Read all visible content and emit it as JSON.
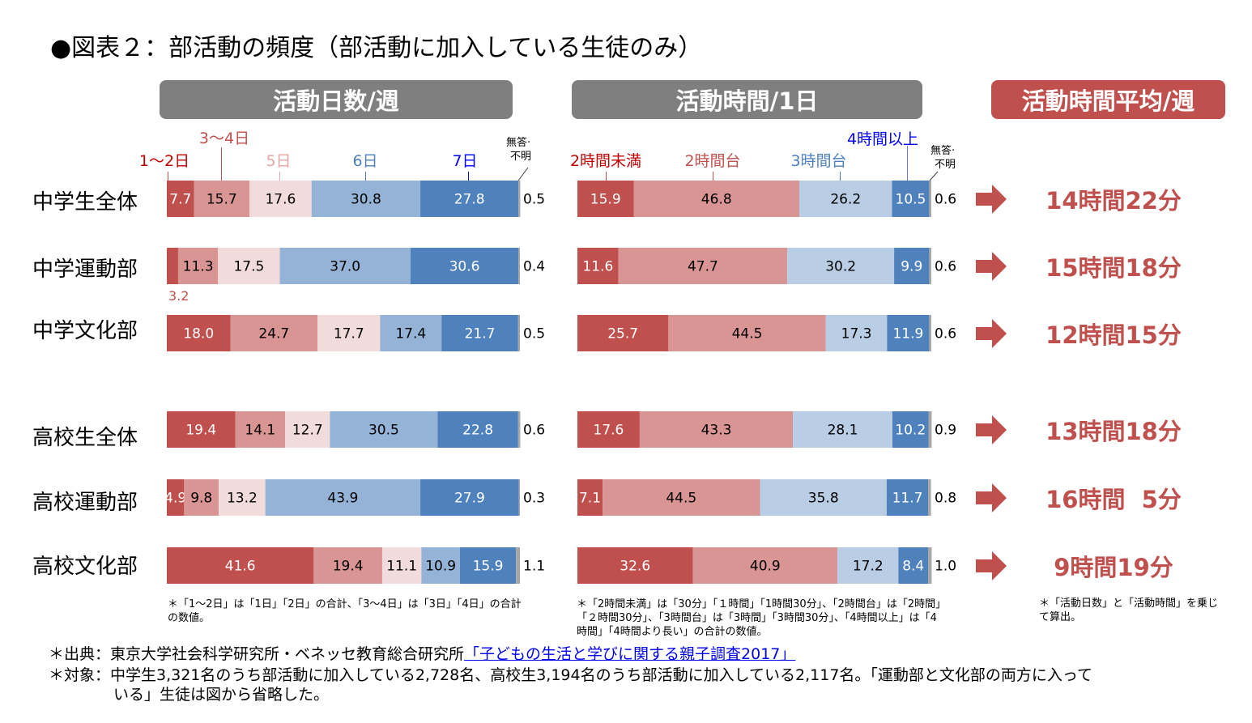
{
  "title": "●図表２：部活動の頻度（部活動に加入している生徒のみ）",
  "headers": {
    "days": "活動日数/週",
    "time": "活動時間/1日",
    "avg": "活動時間平均/週"
  },
  "rows": [
    {
      "label": "中学生全体",
      "avg": "14時間22分"
    },
    {
      "label": "中学運動部",
      "avg": "15時間18分"
    },
    {
      "label": "中学文化部",
      "avg": "12時間15分"
    },
    {
      "label": "高校生全体",
      "avg": "13時間18分"
    },
    {
      "label": "高校運動部",
      "avg": "16時間  5分"
    },
    {
      "label": "高校文化部",
      "avg": "9時間19分"
    }
  ],
  "legend": {
    "days": [
      "1～2日",
      "3～4日",
      "5日",
      "6日",
      "7日"
    ],
    "time": [
      "2時間未満",
      "2時間台",
      "3時間台",
      "4時間以上"
    ],
    "no_answer_line1": "無答·",
    "no_answer_line2": "不明"
  },
  "colors": {
    "days": [
      "#c0504d",
      "#d99594",
      "#f2dcdb",
      "#95b3d7",
      "#4f81bd",
      "#a6a6a6"
    ],
    "time": [
      "#c0504d",
      "#d99594",
      "#b9cde5",
      "#4f81bd",
      "#a6a6a6"
    ],
    "legend_days": [
      "#c00000",
      "#c0504d",
      "#e6a5a3",
      "#4f81bd",
      "#0000ff"
    ],
    "legend_time": [
      "#c00000",
      "#c0504d",
      "#4f81bd",
      "#0000ff"
    ],
    "accent": "#c0504d",
    "header_gray": "#7f7f7f"
  },
  "chart_data": [
    {
      "type": "bar",
      "orientation": "horizontal-stacked-100",
      "title": "活動日数/週",
      "unit": "%",
      "categories": [
        "中学生全体",
        "中学運動部",
        "中学文化部",
        "高校生全体",
        "高校運動部",
        "高校文化部"
      ],
      "series": [
        {
          "name": "1～2日",
          "values": [
            7.7,
            3.2,
            18.0,
            19.4,
            4.9,
            41.6
          ]
        },
        {
          "name": "3～4日",
          "values": [
            15.7,
            11.3,
            24.7,
            14.1,
            9.8,
            19.4
          ]
        },
        {
          "name": "5日",
          "values": [
            17.6,
            17.5,
            17.7,
            12.7,
            13.2,
            11.1
          ]
        },
        {
          "name": "6日",
          "values": [
            30.8,
            37.0,
            17.4,
            30.5,
            43.9,
            10.9
          ]
        },
        {
          "name": "7日",
          "values": [
            27.8,
            30.6,
            21.7,
            22.8,
            27.9,
            15.9
          ]
        },
        {
          "name": "無答·不明",
          "values": [
            0.5,
            0.4,
            0.5,
            0.6,
            0.3,
            1.1
          ]
        }
      ],
      "xlim": [
        0,
        100
      ]
    },
    {
      "type": "bar",
      "orientation": "horizontal-stacked-100",
      "title": "活動時間/1日",
      "unit": "%",
      "categories": [
        "中学生全体",
        "中学運動部",
        "中学文化部",
        "高校生全体",
        "高校運動部",
        "高校文化部"
      ],
      "series": [
        {
          "name": "2時間未満",
          "values": [
            15.9,
            11.6,
            25.7,
            17.6,
            7.1,
            32.6
          ]
        },
        {
          "name": "2時間台",
          "values": [
            46.8,
            47.7,
            44.5,
            43.3,
            44.5,
            40.9
          ]
        },
        {
          "name": "3時間台",
          "values": [
            26.2,
            30.2,
            17.3,
            28.1,
            35.8,
            17.2
          ]
        },
        {
          "name": "4時間以上",
          "values": [
            10.5,
            9.9,
            11.9,
            10.2,
            11.7,
            8.4
          ]
        },
        {
          "name": "無答·不明",
          "values": [
            0.6,
            0.6,
            0.6,
            0.9,
            0.8,
            1.0
          ]
        }
      ],
      "xlim": [
        0,
        100
      ]
    }
  ],
  "notes": {
    "days": "＊「1～2日」は「1日」「2日」の合計、「3～4日」は「3日」「4日」の合計の数値。",
    "time": "＊「2時間未満」は「30分」「１時間」「1時間30分」、「2時間台」は「2時間」「２時間30分」、「3時間台」は「3時間」「3時間30分」、「4時間以上」は「4時間」「4時間より長い」の合計の数値。",
    "avg": "＊「活動日数」と「活動時間」を乗じて算出。"
  },
  "footer": {
    "source_prefix": "＊出典：東京大学社会科学研究所・ベネッセ教育総合研究所",
    "source_link": "「子どもの生活と学びに関する親子調査2017」",
    "target_line1": "＊対象：中学生3,321名のうち部活動に加入している2,728名、高校生3,194名のうち部活動に加入している2,117名。「運動部と文化部の両方に入って",
    "target_line2": "いる」生徒は図から省略した。"
  }
}
